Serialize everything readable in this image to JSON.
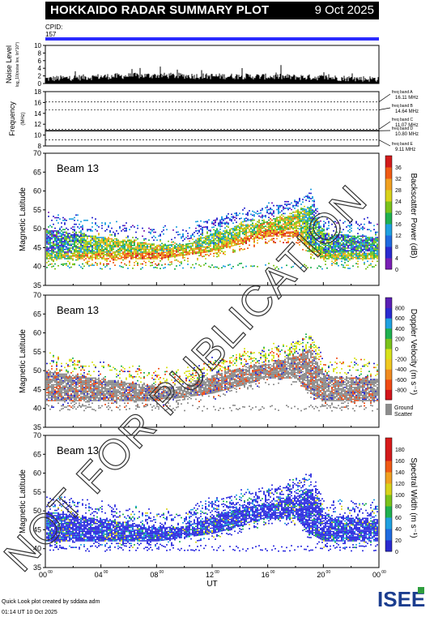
{
  "header": {
    "title": "HOKKAIDO RADAR SUMMARY PLOT",
    "date": "9 Oct 2025",
    "cpid_label": "CPID:",
    "cpid_value": "157"
  },
  "colors": {
    "cpid_bar": "#2b2bff",
    "ground_scatter": "#8c8c8c"
  },
  "chart_data": [
    {
      "type": "bar",
      "ylabel": "Noise Level",
      "ylabel_units": "log_10(noise lev, lin*10^)",
      "ylim": [
        0,
        10
      ],
      "yticks": [
        "0",
        "2",
        "4",
        "6",
        "8",
        "10"
      ],
      "xlim": [
        0,
        24
      ],
      "description_series": "noise_level",
      "series": [
        {
          "name": "",
          "x_hours": [
            0,
            2,
            4,
            6,
            8,
            10,
            12,
            14,
            16,
            18,
            20,
            22,
            24
          ],
          "values": [
            1.2,
            1.5,
            1.8,
            2.0,
            2.1,
            2.0,
            1.9,
            1.9,
            1.8,
            1.7,
            1.6,
            1.3,
            1.2
          ]
        }
      ]
    },
    {
      "type": "line",
      "ylabel": "Frequency",
      "ylabel_units": "(MHz)",
      "ylim": [
        8,
        18
      ],
      "yticks": [
        "8",
        "10",
        "12",
        "14",
        "16",
        "18"
      ],
      "xlim": [
        0,
        24
      ],
      "bands": [
        {
          "label": "freq band A",
          "value_label": "16.11 MHz",
          "value": 16.11
        },
        {
          "label": "freq band B",
          "value_label": "14.64 MHz",
          "value": 14.64
        },
        {
          "label": "freq band C",
          "value_label": "11.07 MHz",
          "value": 11.07
        },
        {
          "label": "freq band D",
          "value_label": "10.80 MHz",
          "value": 10.8
        },
        {
          "label": "freq band E",
          "value_label": "9.11 MHz",
          "value": 9.11
        }
      ],
      "operating_frequency": 10.8
    },
    {
      "type": "heatmap",
      "beam": "Beam 13",
      "ylabel": "Magnetic Latitude",
      "xlabel": "",
      "ylim": [
        35,
        70
      ],
      "yticks": [
        "35",
        "40",
        "45",
        "50",
        "55",
        "60",
        "65",
        "70"
      ],
      "xlim": [
        0,
        24
      ],
      "colorbar": {
        "label": "Backscatter Power (dB)",
        "ticks": [
          "0",
          "4",
          "8",
          "12",
          "16",
          "20",
          "24",
          "28",
          "32",
          "36"
        ],
        "range": [
          0,
          40
        ]
      },
      "scatter_region_upper_lat": [
        50,
        49,
        48,
        47,
        46,
        46,
        49,
        51,
        52,
        54,
        56,
        49,
        48
      ],
      "scatter_region_lower_lat": [
        42,
        42,
        42,
        42,
        42,
        43,
        44,
        46,
        48,
        48,
        44,
        42,
        42
      ],
      "x_hours": [
        0,
        2,
        4,
        6,
        8,
        10,
        12,
        14,
        16,
        18,
        19,
        20,
        24
      ],
      "typical_power_db": [
        12,
        14,
        20,
        22,
        22,
        20,
        18,
        20,
        24,
        22,
        16,
        14,
        12
      ]
    },
    {
      "type": "heatmap",
      "beam": "Beam 13",
      "ylabel": "Magnetic Latitude",
      "ylim": [
        35,
        70
      ],
      "yticks": [
        "35",
        "40",
        "45",
        "50",
        "55",
        "60",
        "65",
        "70"
      ],
      "xlim": [
        0,
        24
      ],
      "colorbar": {
        "label": "Doppler Velocity (m s⁻¹)",
        "ticks": [
          "800",
          "600",
          "400",
          "200",
          "0",
          "-200",
          "-400",
          "-600",
          "-800"
        ],
        "range": [
          -1000,
          1000
        ]
      },
      "ground_scatter_label": "Ground",
      "ground_scatter_label2": "Scatter",
      "x_hours": [
        0,
        2,
        4,
        6,
        8,
        10,
        12,
        14,
        16,
        18,
        19,
        20,
        24
      ],
      "scatter_region_upper_lat": [
        50,
        49,
        48,
        47,
        46,
        46,
        49,
        51,
        52,
        54,
        56,
        49,
        48
      ],
      "scatter_region_lower_lat": [
        42,
        42,
        42,
        42,
        42,
        43,
        44,
        46,
        48,
        48,
        44,
        42,
        42
      ]
    },
    {
      "type": "heatmap",
      "beam": "Beam 13",
      "ylabel": "Magnetic Latitude",
      "xlabel": "UT",
      "ylim": [
        35,
        70
      ],
      "yticks": [
        "35",
        "40",
        "45",
        "50",
        "55",
        "60",
        "65",
        "70"
      ],
      "xlim": [
        0,
        24
      ],
      "xticks": [
        "00",
        "04",
        "08",
        "12",
        "16",
        "20",
        "00"
      ],
      "xtick_superscript": "00",
      "colorbar": {
        "label": "Spectral Width (m s⁻¹)",
        "ticks": [
          "0",
          "20",
          "40",
          "60",
          "80",
          "100",
          "120",
          "140",
          "160",
          "180"
        ],
        "range": [
          0,
          200
        ]
      },
      "x_hours": [
        0,
        2,
        4,
        6,
        8,
        10,
        12,
        14,
        16,
        18,
        19,
        20,
        24
      ],
      "scatter_region_upper_lat": [
        50,
        49,
        48,
        47,
        46,
        46,
        49,
        51,
        52,
        54,
        56,
        49,
        48
      ],
      "scatter_region_lower_lat": [
        42,
        42,
        42,
        42,
        42,
        43,
        44,
        46,
        48,
        48,
        44,
        42,
        42
      ]
    }
  ],
  "watermark": "NOT FOR PUBLICATION",
  "footer": {
    "line1": "Quick Look plot created by sddata adm",
    "line2": "01:14 UT 10 Oct 2025",
    "logo": "ISEE"
  }
}
